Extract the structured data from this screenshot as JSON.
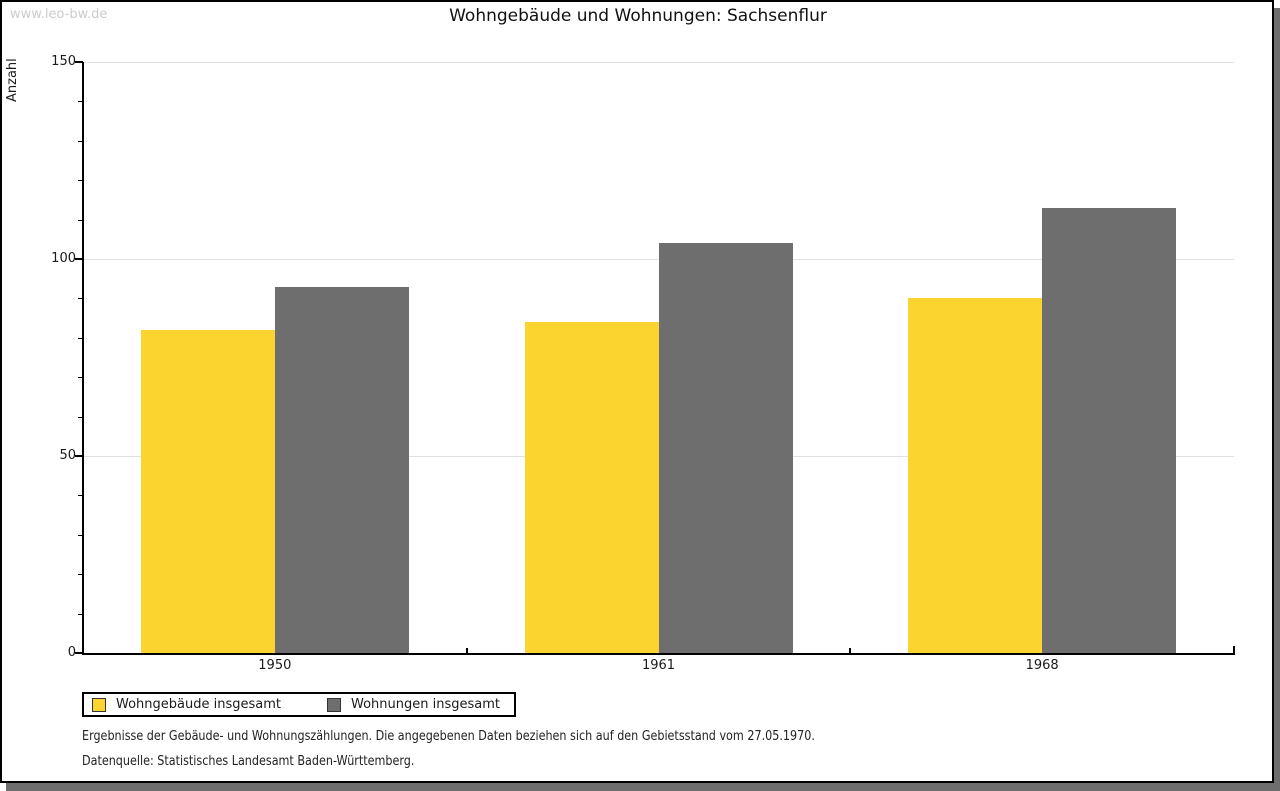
{
  "watermark": "www.leo-bw.de",
  "title": "Wohngebäude und Wohnungen: Sachsenflur",
  "chart_data": {
    "type": "bar",
    "title": "Wohngebäude und Wohnungen: Sachsenflur",
    "categories": [
      "1950",
      "1961",
      "1968"
    ],
    "series": [
      {
        "name": "Wohngebäude insgesamt",
        "color": "#FCD42F",
        "values": [
          82,
          84,
          90
        ]
      },
      {
        "name": "Wohnungen insgesamt",
        "color": "#6E6E6E",
        "values": [
          93,
          104,
          113
        ]
      }
    ],
    "xlabel": "",
    "ylabel": "Anzahl",
    "ylim": [
      0,
      150
    ],
    "yticks": [
      0,
      50,
      100,
      150
    ],
    "minor_tick_step": 10,
    "grid": true,
    "gridline_color": "#E1E1E1",
    "legend_position": "bottom-left"
  },
  "footer": {
    "line1": "Ergebnisse der Gebäude- und Wohnungszählungen. Die angegebenen Daten beziehen sich auf den Gebietsstand vom 27.05.1970.",
    "line2": "Datenquelle: Statistisches Landesamt Baden-Württemberg."
  }
}
